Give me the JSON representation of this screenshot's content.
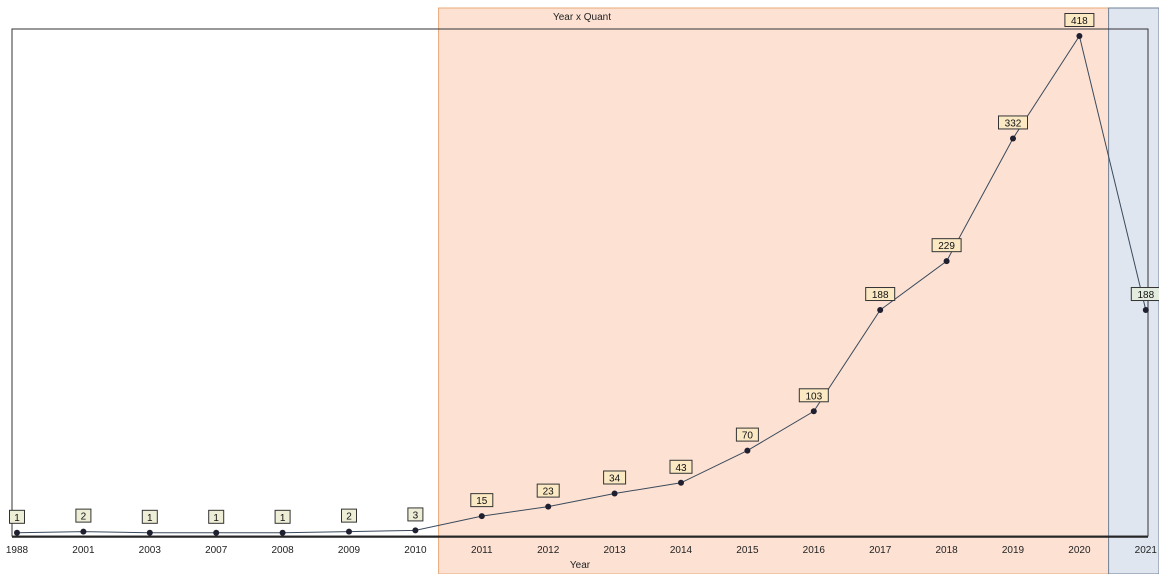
{
  "chart_data": {
    "type": "line",
    "title": "Year x Quant",
    "xlabel": "Year",
    "ylabel": "",
    "categories": [
      "1988",
      "2001",
      "2003",
      "2007",
      "2008",
      "2009",
      "2010",
      "2011",
      "2012",
      "2013",
      "2014",
      "2015",
      "2016",
      "2017",
      "2018",
      "2019",
      "2020",
      "2021"
    ],
    "values": [
      1,
      2,
      1,
      1,
      1,
      2,
      3,
      15,
      23,
      34,
      43,
      70,
      103,
      188,
      229,
      332,
      418,
      188
    ],
    "ylim": [
      0,
      418
    ],
    "grid": false,
    "legend": "none",
    "highlight_regions": [
      {
        "from": "2011",
        "to": "2020",
        "color": "#fde2d4",
        "border": "#e8a877"
      },
      {
        "from": "2021",
        "to": "2021",
        "color": "#dfe6f0",
        "border": "#6f7f95"
      }
    ],
    "colors": {
      "line": "#3a4a5c",
      "marker": "#1f1f30",
      "label_bg_normal": "#eeeed6",
      "label_bg_highlight": "#fbe9c4",
      "label_bg_future": "#e4ecdf",
      "label_border": "#333333"
    }
  }
}
